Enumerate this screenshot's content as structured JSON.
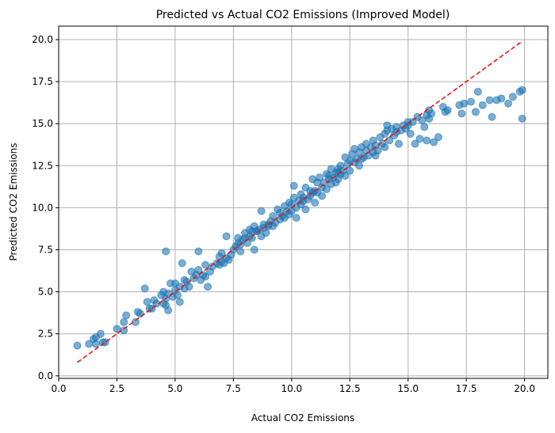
{
  "chart_data": {
    "type": "scatter",
    "title": "Predicted vs Actual CO2 Emissions (Improved Model)",
    "xlabel": "Actual CO2 Emissions",
    "ylabel": "Predicted CO2 Emissions",
    "xlim": [
      0.0,
      21.0
    ],
    "ylim": [
      -0.15,
      20.8
    ],
    "x_ticks": [
      0.0,
      2.5,
      5.0,
      7.5,
      10.0,
      12.5,
      15.0,
      17.5,
      20.0
    ],
    "y_ticks": [
      0.0,
      2.5,
      5.0,
      7.5,
      10.0,
      12.5,
      15.0,
      17.5,
      20.0
    ],
    "x_tick_labels": [
      "0.0",
      "2.5",
      "5.0",
      "7.5",
      "10.0",
      "12.5",
      "15.0",
      "17.5",
      "20.0"
    ],
    "y_tick_labels": [
      "0.0",
      "2.5",
      "5.0",
      "7.5",
      "10.0",
      "12.5",
      "15.0",
      "17.5",
      "20.0"
    ],
    "grid": true,
    "point_color": "#1f77b4",
    "reference_line": {
      "x": [
        0.8,
        19.9
      ],
      "y": [
        0.8,
        19.9
      ],
      "color": "#e31a1c",
      "style": "dashed"
    },
    "series": [
      {
        "points": [
          [
            0.8,
            1.8
          ],
          [
            1.3,
            1.9
          ],
          [
            1.5,
            2.2
          ],
          [
            1.6,
            2.3
          ],
          [
            1.6,
            1.9
          ],
          [
            1.8,
            2.5
          ],
          [
            1.9,
            2.0
          ],
          [
            2.0,
            2.0
          ],
          [
            2.5,
            2.8
          ],
          [
            2.8,
            3.2
          ],
          [
            2.8,
            2.7
          ],
          [
            2.9,
            3.6
          ],
          [
            3.3,
            3.2
          ],
          [
            3.4,
            3.8
          ],
          [
            3.5,
            3.7
          ],
          [
            3.7,
            5.2
          ],
          [
            3.8,
            4.4
          ],
          [
            3.9,
            4.0
          ],
          [
            4.0,
            4.0
          ],
          [
            4.1,
            4.5
          ],
          [
            4.2,
            4.3
          ],
          [
            4.4,
            4.8
          ],
          [
            4.5,
            4.3
          ],
          [
            4.5,
            5.0
          ],
          [
            4.6,
            7.4
          ],
          [
            4.6,
            4.6
          ],
          [
            4.6,
            4.2
          ],
          [
            4.7,
            3.9
          ],
          [
            4.7,
            4.9
          ],
          [
            4.8,
            5.5
          ],
          [
            4.9,
            4.7
          ],
          [
            5.0,
            5.1
          ],
          [
            5.0,
            5.5
          ],
          [
            5.1,
            4.8
          ],
          [
            5.2,
            4.4
          ],
          [
            5.2,
            5.3
          ],
          [
            5.3,
            6.7
          ],
          [
            5.4,
            5.2
          ],
          [
            5.4,
            5.7
          ],
          [
            5.5,
            5.6
          ],
          [
            5.6,
            5.3
          ],
          [
            5.7,
            6.2
          ],
          [
            5.8,
            5.8
          ],
          [
            5.9,
            6.0
          ],
          [
            6.0,
            6.3
          ],
          [
            6.0,
            7.4
          ],
          [
            6.1,
            5.7
          ],
          [
            6.2,
            6.0
          ],
          [
            6.3,
            5.9
          ],
          [
            6.3,
            6.6
          ],
          [
            6.4,
            5.3
          ],
          [
            6.5,
            6.2
          ],
          [
            6.6,
            6.5
          ],
          [
            6.8,
            6.7
          ],
          [
            6.9,
            7.1
          ],
          [
            7.0,
            6.8
          ],
          [
            7.0,
            7.3
          ],
          [
            7.1,
            6.7
          ],
          [
            7.2,
            7.0
          ],
          [
            7.2,
            8.3
          ],
          [
            7.3,
            6.9
          ],
          [
            7.4,
            7.2
          ],
          [
            7.5,
            7.5
          ],
          [
            7.6,
            7.7
          ],
          [
            7.7,
            7.9
          ],
          [
            7.7,
            8.2
          ],
          [
            7.8,
            7.4
          ],
          [
            7.8,
            7.8
          ],
          [
            7.9,
            8.1
          ],
          [
            8.0,
            8.2
          ],
          [
            8.0,
            8.5
          ],
          [
            8.1,
            7.9
          ],
          [
            8.2,
            8.7
          ],
          [
            8.2,
            8.3
          ],
          [
            8.3,
            8.2
          ],
          [
            8.3,
            8.6
          ],
          [
            8.4,
            7.5
          ],
          [
            8.4,
            8.9
          ],
          [
            8.5,
            8.6
          ],
          [
            8.6,
            8.7
          ],
          [
            8.7,
            8.3
          ],
          [
            8.7,
            9.8
          ],
          [
            8.8,
            9.0
          ],
          [
            8.8,
            8.8
          ],
          [
            8.9,
            8.5
          ],
          [
            9.0,
            9.0
          ],
          [
            9.0,
            8.9
          ],
          [
            9.1,
            9.2
          ],
          [
            9.2,
            8.9
          ],
          [
            9.2,
            9.5
          ],
          [
            9.3,
            9.1
          ],
          [
            9.4,
            9.9
          ],
          [
            9.5,
            9.3
          ],
          [
            9.5,
            9.7
          ],
          [
            9.6,
            9.5
          ],
          [
            9.7,
            10.1
          ],
          [
            9.7,
            9.4
          ],
          [
            9.8,
            9.8
          ],
          [
            9.9,
            10.3
          ],
          [
            9.9,
            9.6
          ],
          [
            10.0,
            10.2
          ],
          [
            10.0,
            9.8
          ],
          [
            10.1,
            10.6
          ],
          [
            10.1,
            11.3
          ],
          [
            10.2,
            10.0
          ],
          [
            10.2,
            9.4
          ],
          [
            10.3,
            10.4
          ],
          [
            10.4,
            10.8
          ],
          [
            10.4,
            10.2
          ],
          [
            10.5,
            10.6
          ],
          [
            10.6,
            9.9
          ],
          [
            10.6,
            11.2
          ],
          [
            10.7,
            10.5
          ],
          [
            10.8,
            10.7
          ],
          [
            10.8,
            11.0
          ],
          [
            10.9,
            11.7
          ],
          [
            10.9,
            10.9
          ],
          [
            11.0,
            11.0
          ],
          [
            11.0,
            10.3
          ],
          [
            11.1,
            11.5
          ],
          [
            11.1,
            10.9
          ],
          [
            11.2,
            11.8
          ],
          [
            11.3,
            11.2
          ],
          [
            11.3,
            10.7
          ],
          [
            11.4,
            11.5
          ],
          [
            11.5,
            12.0
          ],
          [
            11.5,
            11.1
          ],
          [
            11.6,
            11.7
          ],
          [
            11.7,
            11.4
          ],
          [
            11.7,
            12.3
          ],
          [
            11.8,
            11.8
          ],
          [
            11.9,
            11.5
          ],
          [
            11.9,
            12.1
          ],
          [
            12.0,
            12.3
          ],
          [
            12.0,
            11.7
          ],
          [
            12.1,
            12.0
          ],
          [
            12.1,
            12.5
          ],
          [
            12.2,
            12.2
          ],
          [
            12.3,
            13.0
          ],
          [
            12.3,
            11.9
          ],
          [
            12.4,
            12.6
          ],
          [
            12.5,
            12.8
          ],
          [
            12.5,
            12.2
          ],
          [
            12.6,
            13.2
          ],
          [
            12.7,
            12.7
          ],
          [
            12.7,
            13.5
          ],
          [
            12.8,
            12.9
          ],
          [
            12.9,
            12.5
          ],
          [
            12.9,
            13.3
          ],
          [
            13.0,
            13.6
          ],
          [
            13.0,
            12.9
          ],
          [
            13.1,
            13.0
          ],
          [
            13.2,
            13.4
          ],
          [
            13.2,
            13.8
          ],
          [
            13.3,
            13.1
          ],
          [
            13.4,
            13.6
          ],
          [
            13.5,
            13.3
          ],
          [
            13.5,
            14.0
          ],
          [
            13.6,
            13.7
          ],
          [
            13.7,
            13.4
          ],
          [
            13.8,
            14.2
          ],
          [
            13.9,
            13.8
          ],
          [
            14.0,
            14.4
          ],
          [
            14.0,
            13.6
          ],
          [
            14.1,
            14.9
          ],
          [
            14.1,
            14.6
          ],
          [
            14.2,
            14.0
          ],
          [
            14.3,
            14.7
          ],
          [
            14.4,
            14.3
          ],
          [
            14.5,
            14.8
          ],
          [
            14.5,
            14.5
          ],
          [
            14.6,
            13.8
          ],
          [
            14.7,
            14.6
          ],
          [
            14.8,
            14.9
          ],
          [
            14.9,
            14.7
          ],
          [
            15.0,
            15.1
          ],
          [
            15.0,
            14.9
          ],
          [
            15.1,
            14.4
          ],
          [
            15.2,
            15.1
          ],
          [
            15.3,
            13.8
          ],
          [
            15.4,
            15.4
          ],
          [
            15.5,
            14.1
          ],
          [
            15.6,
            15.2
          ],
          [
            15.7,
            14.8
          ],
          [
            15.8,
            15.5
          ],
          [
            15.9,
            15.8
          ],
          [
            15.9,
            15.3
          ],
          [
            16.0,
            15.6
          ],
          [
            16.1,
            13.9
          ],
          [
            16.3,
            14.2
          ],
          [
            16.5,
            16.0
          ],
          [
            16.6,
            15.7
          ],
          [
            16.7,
            15.8
          ],
          [
            17.2,
            16.1
          ],
          [
            17.3,
            15.6
          ],
          [
            17.4,
            16.2
          ],
          [
            17.7,
            16.3
          ],
          [
            17.9,
            15.7
          ],
          [
            18.0,
            16.9
          ],
          [
            18.2,
            16.1
          ],
          [
            18.5,
            16.4
          ],
          [
            18.6,
            15.4
          ],
          [
            18.8,
            16.4
          ],
          [
            19.0,
            16.5
          ],
          [
            19.3,
            16.2
          ],
          [
            19.5,
            16.6
          ],
          [
            19.8,
            16.9
          ],
          [
            19.9,
            17.0
          ],
          [
            19.9,
            15.3
          ],
          [
            15.8,
            14.0
          ],
          [
            12.0,
            12.1
          ],
          [
            10.5,
            10.4
          ],
          [
            8.5,
            8.6
          ],
          [
            6.9,
            6.6
          ],
          [
            11.6,
            11.9
          ],
          [
            13.6,
            13.1
          ]
        ]
      }
    ]
  }
}
